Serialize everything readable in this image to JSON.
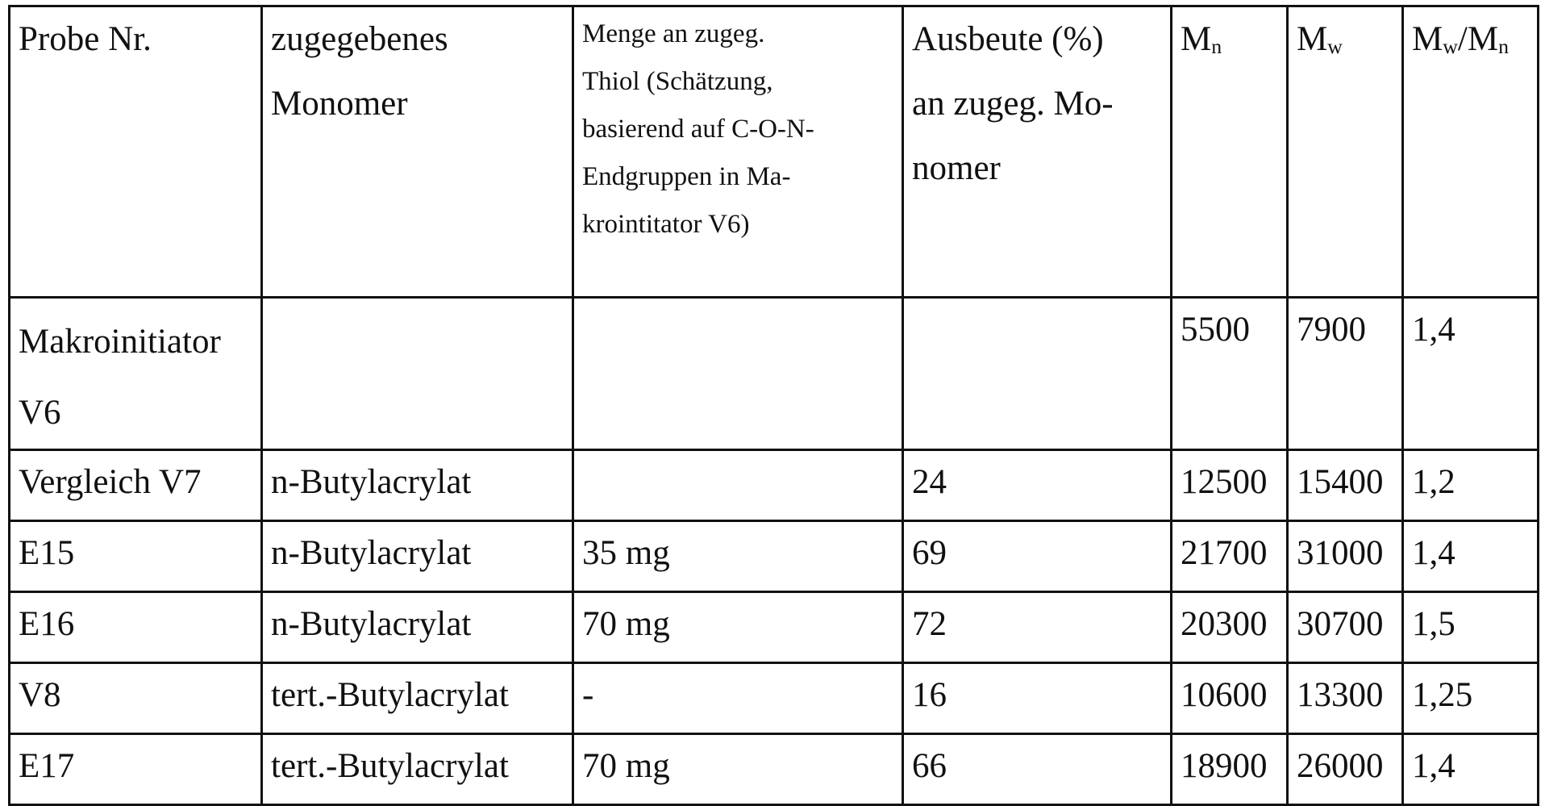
{
  "table": {
    "headers": [
      "Probe Nr.",
      "zugegebenes Monomer",
      "Menge an zugeg. Thiol (Schätzung, basierend auf C-O-N-Endgruppen in Makrointitator V6)",
      "Ausbeute (%) an zugeg. Monomer",
      "Mn",
      "Mw",
      "Mw/Mn"
    ],
    "header_lines": {
      "col1": [
        "zugegebenes",
        "Monomer"
      ],
      "col2": [
        "Menge an zugeg.",
        "Thiol (Schätzung,",
        "basierend auf C-O-N-",
        "Endgruppen in Ma-",
        "krointitator V6)"
      ],
      "col3": [
        "Ausbeute (%)",
        "an zugeg. Mo-",
        "nomer"
      ]
    },
    "rows": [
      [
        "Makroinitiator V6",
        "",
        "",
        "",
        "5500",
        "7900",
        "1,4"
      ],
      [
        "Vergleich V7",
        "n-Butylacrylat",
        "",
        "24",
        "12500",
        "15400",
        "1,2"
      ],
      [
        "E15",
        "n-Butylacrylat",
        "35 mg",
        "69",
        "21700",
        "31000",
        "1,4"
      ],
      [
        "E16",
        "n-Butylacrylat",
        "70 mg",
        "72",
        "20300",
        "30700",
        "1,5"
      ],
      [
        "V8",
        "tert.-Butylacrylat",
        "-",
        "16",
        "10600",
        "13300",
        "1,25"
      ],
      [
        "E17",
        "tert.-Butylacrylat",
        "70 mg",
        "66",
        "18900",
        "26000",
        "1,4"
      ]
    ]
  }
}
